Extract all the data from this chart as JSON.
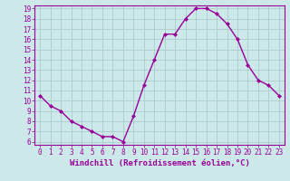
{
  "x": [
    0,
    1,
    2,
    3,
    4,
    5,
    6,
    7,
    8,
    9,
    10,
    11,
    12,
    13,
    14,
    15,
    16,
    17,
    18,
    19,
    20,
    21,
    22,
    23
  ],
  "y": [
    10.5,
    9.5,
    9.0,
    8.0,
    7.5,
    7.0,
    6.5,
    6.5,
    6.0,
    8.5,
    11.5,
    14.0,
    16.5,
    16.5,
    18.0,
    19.0,
    19.0,
    18.5,
    17.5,
    16.0,
    13.5,
    12.0,
    11.5,
    10.5
  ],
  "xlabel": "Windchill (Refroidissement éolien,°C)",
  "xlim_min": -0.5,
  "xlim_max": 23.5,
  "ylim_min": 5.7,
  "ylim_max": 19.3,
  "yticks": [
    6,
    7,
    8,
    9,
    10,
    11,
    12,
    13,
    14,
    15,
    16,
    17,
    18,
    19
  ],
  "xticks": [
    0,
    1,
    2,
    3,
    4,
    5,
    6,
    7,
    8,
    9,
    10,
    11,
    12,
    13,
    14,
    15,
    16,
    17,
    18,
    19,
    20,
    21,
    22,
    23
  ],
  "line_color": "#990099",
  "marker": "D",
  "marker_size": 2.0,
  "bg_color": "#cce8e8",
  "grid_color": "#aacccc",
  "tick_color": "#990099",
  "label_color": "#990099",
  "xlabel_fontsize": 6.5,
  "tick_fontsize": 5.5,
  "line_width": 1.0
}
